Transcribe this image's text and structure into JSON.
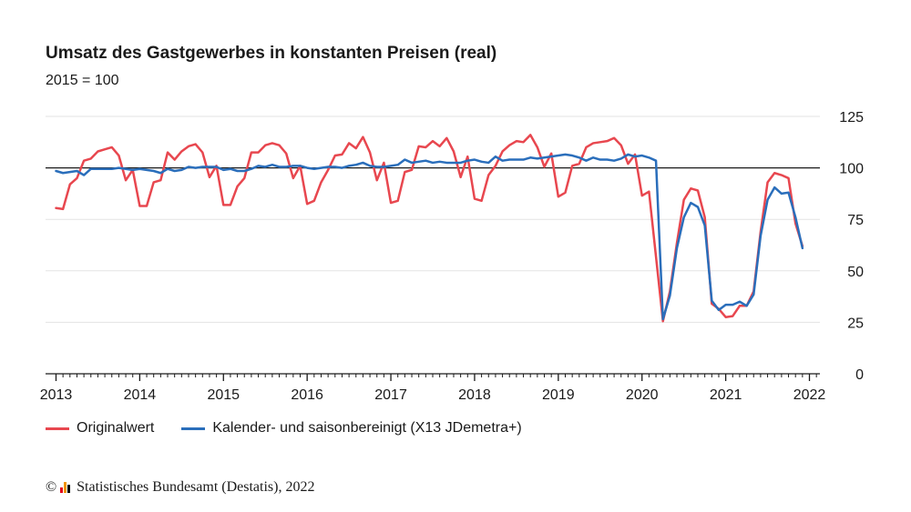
{
  "chart_data": {
    "type": "line",
    "title": "Umsatz des Gastgewerbes in konstanten Preisen (real)",
    "subtitle": "2015 = 100",
    "ylim": [
      0,
      125
    ],
    "yticks": [
      0,
      25,
      50,
      75,
      100,
      125
    ],
    "xlim": [
      2012.875,
      2022.125
    ],
    "xticks": [
      "2013",
      "2014",
      "2015",
      "2016",
      "2017",
      "2018",
      "2019",
      "2020",
      "2021",
      "2022"
    ],
    "reference_line": 100,
    "grid": "horizontal",
    "legend_position": "bottom-left",
    "series": [
      {
        "name": "Originalwert",
        "color": "#e8474f",
        "start_year": 2013,
        "start_month": 1,
        "values": [
          80.5,
          80,
          92,
          95,
          103.5,
          104.5,
          108,
          109,
          110,
          106,
          94,
          99,
          81.5,
          81.5,
          93,
          94,
          107.5,
          104,
          108,
          110.5,
          111.5,
          107.5,
          95.5,
          101,
          82,
          82,
          91,
          95,
          107.5,
          107.5,
          111,
          112,
          111,
          107,
          95,
          101,
          82.5,
          84,
          93,
          99,
          106,
          106.5,
          112,
          109.5,
          115,
          107.5,
          94,
          102.5,
          83,
          84,
          98,
          99,
          110.5,
          110,
          113,
          110.5,
          114.5,
          108,
          95.5,
          105.5,
          85,
          84,
          96.5,
          101,
          108,
          111,
          113,
          112.5,
          116,
          110,
          100.5,
          107,
          86,
          88,
          101,
          102,
          110,
          112,
          112.5,
          113,
          114.5,
          111,
          102,
          106.5,
          86.5,
          88.5,
          57,
          25.5,
          40,
          63.5,
          84.5,
          90,
          89,
          76,
          34,
          31.5,
          27.5,
          28,
          33,
          33,
          40,
          69,
          93,
          97.5,
          96.5,
          95,
          73,
          62
        ]
      },
      {
        "name": "Kalender- und saisonbereinigt (X13 JDemetra+)",
        "color": "#2a6ebb",
        "start_year": 2013,
        "start_month": 1,
        "values": [
          98.5,
          97.5,
          98,
          98.5,
          96.5,
          99.5,
          99.5,
          99.5,
          99.5,
          100,
          99.5,
          99,
          99.5,
          99,
          98.5,
          97.5,
          99.5,
          98.5,
          99,
          100.5,
          100,
          100.5,
          100.5,
          100.5,
          99,
          99.5,
          98.5,
          98.5,
          99.5,
          101,
          100.5,
          101.5,
          100.5,
          100.5,
          101,
          101,
          100,
          99.5,
          100,
          100.5,
          100.5,
          100,
          101,
          101.5,
          102.5,
          101,
          100.5,
          100.5,
          101,
          101.5,
          104,
          102.5,
          103,
          103.5,
          102.5,
          103,
          102.5,
          102.5,
          102.5,
          103.5,
          104,
          103,
          102.5,
          105.5,
          103.5,
          104,
          104,
          104,
          105,
          104.5,
          105,
          105.5,
          106,
          106.5,
          106,
          105,
          103.5,
          105,
          104,
          104,
          103.5,
          104.5,
          106.5,
          105.5,
          106,
          105,
          103.5,
          26.5,
          38,
          61,
          76,
          83,
          81,
          72,
          35.5,
          31,
          33.5,
          33.5,
          35,
          33,
          38.5,
          67,
          84.5,
          90.5,
          87.5,
          88,
          76,
          61
        ]
      }
    ]
  },
  "source": {
    "copyright_symbol": "©",
    "text": "Statistisches Bundesamt (Destatis), 2022",
    "logo_colors": [
      "#e2001a",
      "#f29400",
      "#000000"
    ]
  }
}
